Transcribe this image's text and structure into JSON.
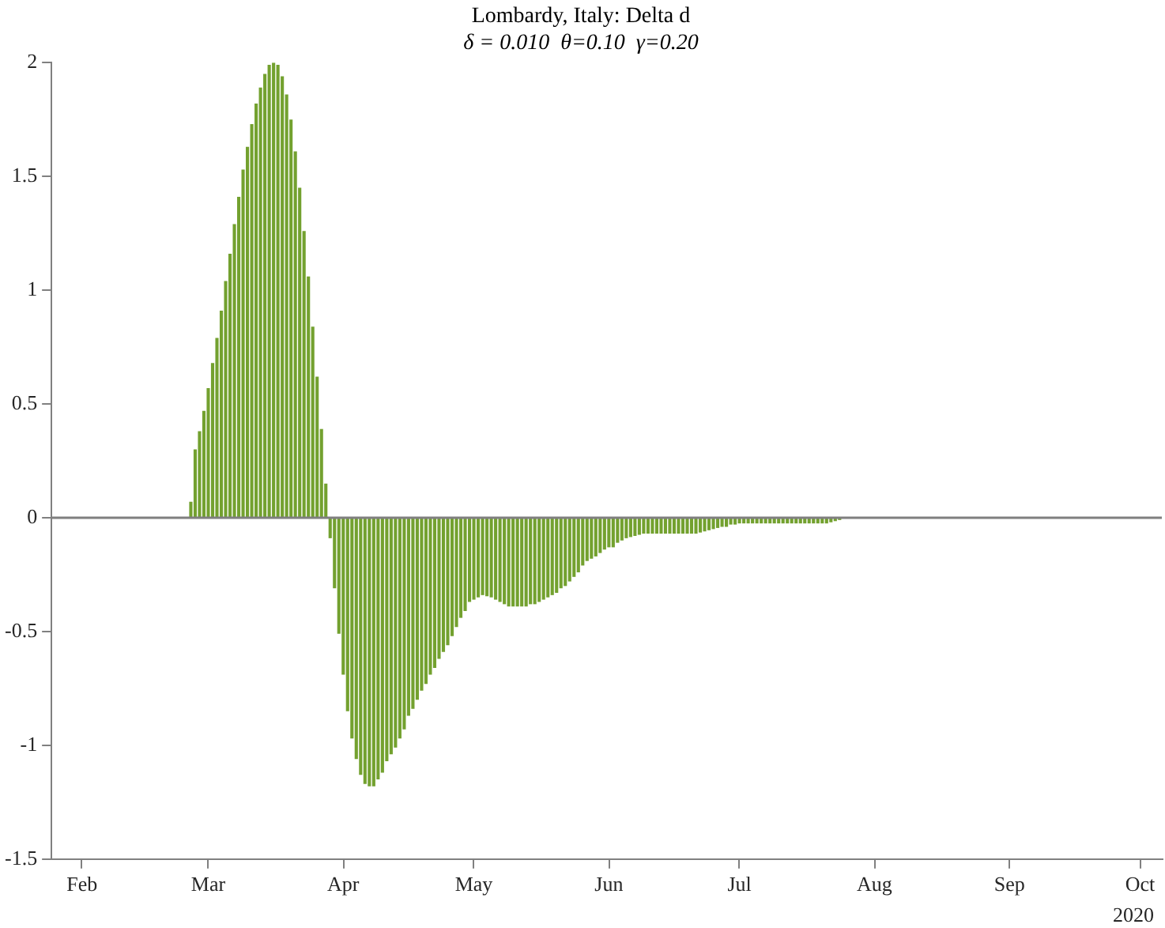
{
  "chart_data": {
    "type": "bar",
    "title": "Lombardy, Italy: Delta d",
    "subtitle": "δ = 0.010  θ=0.10  γ=0.20",
    "annotations": [
      "2020"
    ],
    "x": [
      "2020-02-26",
      "2020-02-27",
      "2020-02-28",
      "2020-02-29",
      "2020-03-01",
      "2020-03-02",
      "2020-03-03",
      "2020-03-04",
      "2020-03-05",
      "2020-03-06",
      "2020-03-07",
      "2020-03-08",
      "2020-03-09",
      "2020-03-10",
      "2020-03-11",
      "2020-03-12",
      "2020-03-13",
      "2020-03-14",
      "2020-03-15",
      "2020-03-16",
      "2020-03-17",
      "2020-03-18",
      "2020-03-19",
      "2020-03-20",
      "2020-03-21",
      "2020-03-22",
      "2020-03-23",
      "2020-03-24",
      "2020-03-25",
      "2020-03-26",
      "2020-03-27",
      "2020-03-28",
      "2020-03-29",
      "2020-03-30",
      "2020-03-31",
      "2020-04-01",
      "2020-04-02",
      "2020-04-03",
      "2020-04-04",
      "2020-04-05",
      "2020-04-06",
      "2020-04-07",
      "2020-04-08",
      "2020-04-09",
      "2020-04-10",
      "2020-04-11",
      "2020-04-12",
      "2020-04-13",
      "2020-04-14",
      "2020-04-15",
      "2020-04-16",
      "2020-04-17",
      "2020-04-18",
      "2020-04-19",
      "2020-04-20",
      "2020-04-21",
      "2020-04-22",
      "2020-04-23",
      "2020-04-24",
      "2020-04-25",
      "2020-04-26",
      "2020-04-27",
      "2020-04-28",
      "2020-04-29",
      "2020-04-30",
      "2020-05-01",
      "2020-05-02",
      "2020-05-03",
      "2020-05-04",
      "2020-05-05",
      "2020-05-06",
      "2020-05-07",
      "2020-05-08",
      "2020-05-09",
      "2020-05-10",
      "2020-05-11",
      "2020-05-12",
      "2020-05-13",
      "2020-05-14",
      "2020-05-15",
      "2020-05-16",
      "2020-05-17",
      "2020-05-18",
      "2020-05-19",
      "2020-05-20",
      "2020-05-21",
      "2020-05-22",
      "2020-05-23",
      "2020-05-24",
      "2020-05-25",
      "2020-05-26",
      "2020-05-27",
      "2020-05-28",
      "2020-05-29",
      "2020-05-30",
      "2020-05-31",
      "2020-06-01",
      "2020-06-02",
      "2020-06-03",
      "2020-06-04",
      "2020-06-05",
      "2020-06-06",
      "2020-06-07",
      "2020-06-08",
      "2020-06-09",
      "2020-06-10",
      "2020-06-11",
      "2020-06-12",
      "2020-06-13",
      "2020-06-14",
      "2020-06-15",
      "2020-06-16",
      "2020-06-17",
      "2020-06-18",
      "2020-06-19",
      "2020-06-20",
      "2020-06-21",
      "2020-06-22",
      "2020-06-23",
      "2020-06-24",
      "2020-06-25",
      "2020-06-26",
      "2020-06-27",
      "2020-06-28",
      "2020-06-29",
      "2020-06-30",
      "2020-07-01",
      "2020-07-02",
      "2020-07-03",
      "2020-07-04",
      "2020-07-05",
      "2020-07-06",
      "2020-07-07",
      "2020-07-08",
      "2020-07-09",
      "2020-07-10",
      "2020-07-11",
      "2020-07-12",
      "2020-07-13",
      "2020-07-14",
      "2020-07-15",
      "2020-07-16",
      "2020-07-17",
      "2020-07-18",
      "2020-07-19",
      "2020-07-20",
      "2020-07-21",
      "2020-07-22",
      "2020-07-23",
      "2020-07-24"
    ],
    "values": [
      0.07,
      0.3,
      0.38,
      0.47,
      0.57,
      0.68,
      0.79,
      0.91,
      1.04,
      1.16,
      1.29,
      1.41,
      1.53,
      1.63,
      1.73,
      1.82,
      1.89,
      1.95,
      1.99,
      2.0,
      1.99,
      1.94,
      1.86,
      1.75,
      1.61,
      1.45,
      1.26,
      1.06,
      0.84,
      0.62,
      0.39,
      0.15,
      -0.09,
      -0.31,
      -0.51,
      -0.69,
      -0.85,
      -0.97,
      -1.06,
      -1.13,
      -1.17,
      -1.18,
      -1.18,
      -1.15,
      -1.12,
      -1.07,
      -1.04,
      -1.01,
      -0.97,
      -0.93,
      -0.87,
      -0.84,
      -0.8,
      -0.76,
      -0.73,
      -0.69,
      -0.66,
      -0.62,
      -0.59,
      -0.56,
      -0.52,
      -0.48,
      -0.44,
      -0.41,
      -0.37,
      -0.36,
      -0.35,
      -0.34,
      -0.345,
      -0.35,
      -0.36,
      -0.37,
      -0.38,
      -0.39,
      -0.39,
      -0.39,
      -0.39,
      -0.39,
      -0.38,
      -0.38,
      -0.37,
      -0.36,
      -0.35,
      -0.34,
      -0.33,
      -0.31,
      -0.3,
      -0.28,
      -0.26,
      -0.24,
      -0.21,
      -0.19,
      -0.18,
      -0.17,
      -0.155,
      -0.14,
      -0.13,
      -0.13,
      -0.11,
      -0.1,
      -0.09,
      -0.085,
      -0.08,
      -0.075,
      -0.07,
      -0.07,
      -0.07,
      -0.07,
      -0.07,
      -0.07,
      -0.07,
      -0.07,
      -0.07,
      -0.07,
      -0.07,
      -0.07,
      -0.07,
      -0.065,
      -0.06,
      -0.055,
      -0.05,
      -0.045,
      -0.04,
      -0.04,
      -0.03,
      -0.03,
      -0.025,
      -0.025,
      -0.025,
      -0.025,
      -0.025,
      -0.025,
      -0.025,
      -0.025,
      -0.025,
      -0.025,
      -0.025,
      -0.025,
      -0.025,
      -0.025,
      -0.025,
      -0.025,
      -0.025,
      -0.025,
      -0.025,
      -0.025,
      -0.025,
      -0.02,
      -0.015,
      -0.01
    ],
    "color": "#73a12f",
    "xlim": [
      "2020-01-25",
      "2020-10-06"
    ],
    "xticks": [
      {
        "value": "2020-02-01",
        "label": "Feb"
      },
      {
        "value": "2020-03-01",
        "label": "Mar"
      },
      {
        "value": "2020-04-01",
        "label": "Apr"
      },
      {
        "value": "2020-05-01",
        "label": "May"
      },
      {
        "value": "2020-06-01",
        "label": "Jun"
      },
      {
        "value": "2020-07-01",
        "label": "Jul"
      },
      {
        "value": "2020-08-01",
        "label": "Aug"
      },
      {
        "value": "2020-09-01",
        "label": "Sep"
      },
      {
        "value": "2020-10-01",
        "label": "Oct"
      }
    ],
    "ylim": [
      -1.5,
      2
    ],
    "yticks": [
      -1.5,
      -1,
      -0.5,
      0,
      0.5,
      1,
      1.5,
      2
    ],
    "ref_lines": [
      {
        "axis": "y",
        "value": 0,
        "color": "#7f7f7f"
      }
    ],
    "grid": false,
    "legend": false
  }
}
